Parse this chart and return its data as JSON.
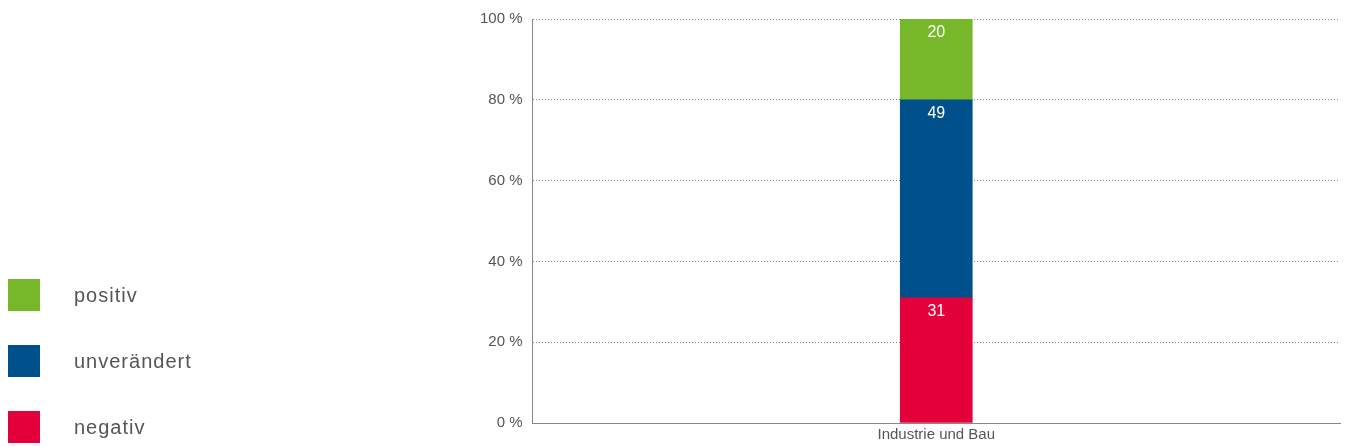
{
  "chart_data": {
    "type": "bar",
    "stacked": true,
    "categories": [
      "Industrie und Bau"
    ],
    "series": [
      {
        "name": "negativ",
        "color": "#e4003a",
        "values": [
          31
        ]
      },
      {
        "name": "unverändert",
        "color": "#00508c",
        "values": [
          49
        ]
      },
      {
        "name": "positiv",
        "color": "#77b82a",
        "values": [
          20
        ]
      }
    ],
    "ylim": [
      0,
      100
    ],
    "yticks": [
      {
        "value": 0,
        "label": "0 %"
      },
      {
        "value": 20,
        "label": "20 %"
      },
      {
        "value": 40,
        "label": "40 %"
      },
      {
        "value": 60,
        "label": "60 %"
      },
      {
        "value": 80,
        "label": "80 %"
      },
      {
        "value": 100,
        "label": "100 %"
      }
    ],
    "grid": "y",
    "legend": "left",
    "data_labels": true
  }
}
